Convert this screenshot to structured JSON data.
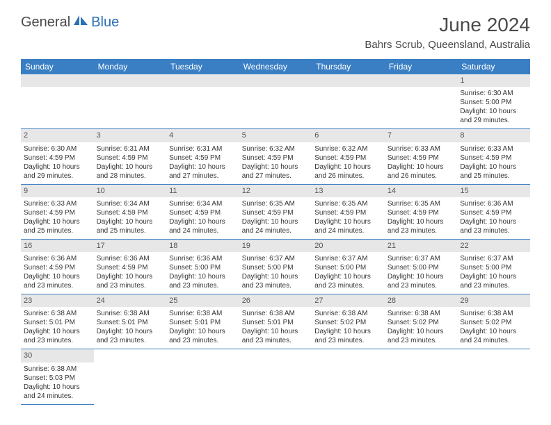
{
  "logo": {
    "general": "General",
    "blue": "Blue"
  },
  "header": {
    "month_title": "June 2024",
    "location": "Bahrs Scrub, Queensland, Australia"
  },
  "colors": {
    "header_bg": "#3a7fc4",
    "header_text": "#ffffff",
    "daynum_bg": "#e7e7e7",
    "border": "#3a7fc4"
  },
  "weekdays": [
    "Sunday",
    "Monday",
    "Tuesday",
    "Wednesday",
    "Thursday",
    "Friday",
    "Saturday"
  ],
  "days": {
    "1": {
      "sunrise": "6:30 AM",
      "sunset": "5:00 PM",
      "daylight": "10 hours and 29 minutes."
    },
    "2": {
      "sunrise": "6:30 AM",
      "sunset": "4:59 PM",
      "daylight": "10 hours and 29 minutes."
    },
    "3": {
      "sunrise": "6:31 AM",
      "sunset": "4:59 PM",
      "daylight": "10 hours and 28 minutes."
    },
    "4": {
      "sunrise": "6:31 AM",
      "sunset": "4:59 PM",
      "daylight": "10 hours and 27 minutes."
    },
    "5": {
      "sunrise": "6:32 AM",
      "sunset": "4:59 PM",
      "daylight": "10 hours and 27 minutes."
    },
    "6": {
      "sunrise": "6:32 AM",
      "sunset": "4:59 PM",
      "daylight": "10 hours and 26 minutes."
    },
    "7": {
      "sunrise": "6:33 AM",
      "sunset": "4:59 PM",
      "daylight": "10 hours and 26 minutes."
    },
    "8": {
      "sunrise": "6:33 AM",
      "sunset": "4:59 PM",
      "daylight": "10 hours and 25 minutes."
    },
    "9": {
      "sunrise": "6:33 AM",
      "sunset": "4:59 PM",
      "daylight": "10 hours and 25 minutes."
    },
    "10": {
      "sunrise": "6:34 AM",
      "sunset": "4:59 PM",
      "daylight": "10 hours and 25 minutes."
    },
    "11": {
      "sunrise": "6:34 AM",
      "sunset": "4:59 PM",
      "daylight": "10 hours and 24 minutes."
    },
    "12": {
      "sunrise": "6:35 AM",
      "sunset": "4:59 PM",
      "daylight": "10 hours and 24 minutes."
    },
    "13": {
      "sunrise": "6:35 AM",
      "sunset": "4:59 PM",
      "daylight": "10 hours and 24 minutes."
    },
    "14": {
      "sunrise": "6:35 AM",
      "sunset": "4:59 PM",
      "daylight": "10 hours and 23 minutes."
    },
    "15": {
      "sunrise": "6:36 AM",
      "sunset": "4:59 PM",
      "daylight": "10 hours and 23 minutes."
    },
    "16": {
      "sunrise": "6:36 AM",
      "sunset": "4:59 PM",
      "daylight": "10 hours and 23 minutes."
    },
    "17": {
      "sunrise": "6:36 AM",
      "sunset": "4:59 PM",
      "daylight": "10 hours and 23 minutes."
    },
    "18": {
      "sunrise": "6:36 AM",
      "sunset": "5:00 PM",
      "daylight": "10 hours and 23 minutes."
    },
    "19": {
      "sunrise": "6:37 AM",
      "sunset": "5:00 PM",
      "daylight": "10 hours and 23 minutes."
    },
    "20": {
      "sunrise": "6:37 AM",
      "sunset": "5:00 PM",
      "daylight": "10 hours and 23 minutes."
    },
    "21": {
      "sunrise": "6:37 AM",
      "sunset": "5:00 PM",
      "daylight": "10 hours and 23 minutes."
    },
    "22": {
      "sunrise": "6:37 AM",
      "sunset": "5:00 PM",
      "daylight": "10 hours and 23 minutes."
    },
    "23": {
      "sunrise": "6:38 AM",
      "sunset": "5:01 PM",
      "daylight": "10 hours and 23 minutes."
    },
    "24": {
      "sunrise": "6:38 AM",
      "sunset": "5:01 PM",
      "daylight": "10 hours and 23 minutes."
    },
    "25": {
      "sunrise": "6:38 AM",
      "sunset": "5:01 PM",
      "daylight": "10 hours and 23 minutes."
    },
    "26": {
      "sunrise": "6:38 AM",
      "sunset": "5:01 PM",
      "daylight": "10 hours and 23 minutes."
    },
    "27": {
      "sunrise": "6:38 AM",
      "sunset": "5:02 PM",
      "daylight": "10 hours and 23 minutes."
    },
    "28": {
      "sunrise": "6:38 AM",
      "sunset": "5:02 PM",
      "daylight": "10 hours and 23 minutes."
    },
    "29": {
      "sunrise": "6:38 AM",
      "sunset": "5:02 PM",
      "daylight": "10 hours and 24 minutes."
    },
    "30": {
      "sunrise": "6:38 AM",
      "sunset": "5:03 PM",
      "daylight": "10 hours and 24 minutes."
    }
  },
  "labels": {
    "sunrise": "Sunrise:",
    "sunset": "Sunset:",
    "daylight": "Daylight:"
  },
  "grid": [
    [
      null,
      null,
      null,
      null,
      null,
      null,
      "1"
    ],
    [
      "2",
      "3",
      "4",
      "5",
      "6",
      "7",
      "8"
    ],
    [
      "9",
      "10",
      "11",
      "12",
      "13",
      "14",
      "15"
    ],
    [
      "16",
      "17",
      "18",
      "19",
      "20",
      "21",
      "22"
    ],
    [
      "23",
      "24",
      "25",
      "26",
      "27",
      "28",
      "29"
    ],
    [
      "30",
      null,
      null,
      null,
      null,
      null,
      null
    ]
  ]
}
